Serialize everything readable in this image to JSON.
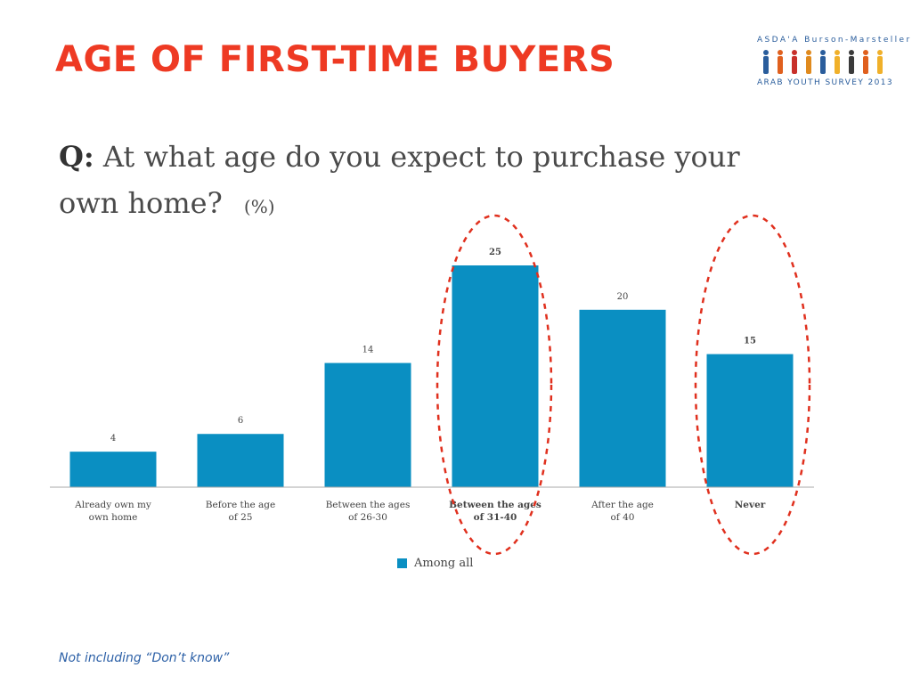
{
  "title": "AGE OF FIRST-TIME BUYERS",
  "question": {
    "prefix": "Q:",
    "text": "At what age do you expect to purchase your own home?",
    "unit": "(%)"
  },
  "logo": {
    "brand": "ASDA'A Burson-Marsteller",
    "survey": "ARAB YOUTH SURVEY 2013"
  },
  "footnote": "Not including “Don’t know”",
  "colors": {
    "title": "#ee3a23",
    "bar": "#0a8fc2",
    "highlight": "#e0301e",
    "footnote": "#2b5fa6"
  },
  "chart_data": {
    "type": "bar",
    "categories": [
      [
        "Already own my",
        "own home"
      ],
      [
        "Before the age",
        "of 25"
      ],
      [
        "Between the ages",
        "of 26-30"
      ],
      [
        "Between the ages",
        "of 31-40"
      ],
      [
        "After the age",
        "of 40"
      ],
      [
        "Never"
      ]
    ],
    "series": [
      {
        "name": "Among all",
        "values": [
          4,
          6,
          14,
          25,
          20,
          15
        ]
      }
    ],
    "value_labels": [
      "4",
      "6",
      "14",
      "25",
      "20",
      "15"
    ],
    "bold_categories": [
      false,
      false,
      false,
      true,
      false,
      true
    ],
    "bold_values": [
      false,
      false,
      false,
      true,
      false,
      true
    ],
    "highlighted_categories": [
      3,
      5
    ],
    "ylim": [
      0,
      25
    ],
    "grid": false,
    "legend_position": "bottom-center"
  }
}
